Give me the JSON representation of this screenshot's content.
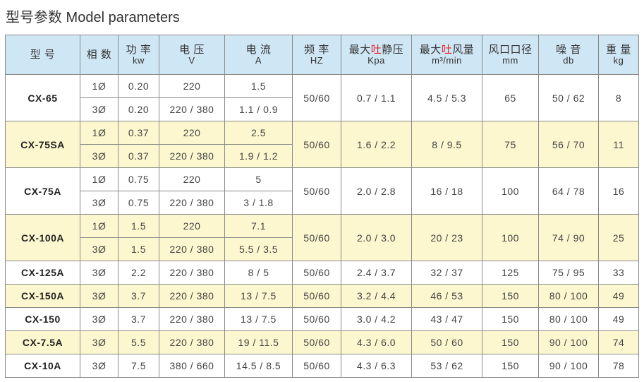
{
  "title": "型号参数 Model parameters",
  "header": [
    {
      "label": "型 号",
      "unit": ""
    },
    {
      "label": "相 数",
      "unit": ""
    },
    {
      "label": "功 率",
      "unit": "kw"
    },
    {
      "label": "电 压",
      "unit": "V"
    },
    {
      "label": "电 流",
      "unit": "A"
    },
    {
      "label": "频 率",
      "unit": "HZ"
    },
    {
      "label_pre": "最大",
      "label_red": "吐",
      "label_post": "静压",
      "unit": "Kpa"
    },
    {
      "label_pre": "最大",
      "label_red": "吐",
      "label_post": "风量",
      "unit": "m³/min"
    },
    {
      "label": "风口口径",
      "unit": "mm"
    },
    {
      "label": "噪 音",
      "unit": "db"
    },
    {
      "label": "重 量",
      "unit": "kg"
    }
  ],
  "colors": {
    "header_bg": "#cfe6f5",
    "highlight_row_bg": "#fdf7cf",
    "accent_red": "#e0262b"
  },
  "models": [
    {
      "model": "CX-65",
      "highlight": false,
      "freq": "50/60",
      "pressure": "0.7 / 1.1",
      "flow": "4.5 / 5.3",
      "outlet": "65",
      "noise": "50 / 62",
      "weight": "8",
      "rows": [
        {
          "phase": "1Ø",
          "power": "0.20",
          "voltage": "220",
          "current": "1.5"
        },
        {
          "phase": "3Ø",
          "power": "0.20",
          "voltage": "220 / 380",
          "current": "1.1 / 0.9"
        }
      ]
    },
    {
      "model": "CX-75SA",
      "highlight": true,
      "freq": "50/60",
      "pressure": "1.6 / 2.2",
      "flow": "8 / 9.5",
      "outlet": "75",
      "noise": "56 / 70",
      "weight": "11",
      "rows": [
        {
          "phase": "1Ø",
          "power": "0.37",
          "voltage": "220",
          "current": "2.5"
        },
        {
          "phase": "3Ø",
          "power": "0.37",
          "voltage": "220 / 380",
          "current": "1.9 / 1.2"
        }
      ]
    },
    {
      "model": "CX-75A",
      "highlight": false,
      "freq": "50/60",
      "pressure": "2.0 / 2.8",
      "flow": "16 / 18",
      "outlet": "100",
      "noise": "64 / 78",
      "weight": "16",
      "rows": [
        {
          "phase": "1Ø",
          "power": "0.75",
          "voltage": "220",
          "current": "5"
        },
        {
          "phase": "3Ø",
          "power": "0.75",
          "voltage": "220 / 380",
          "current": "3 / 1.8"
        }
      ]
    },
    {
      "model": "CX-100A",
      "highlight": true,
      "freq": "50/60",
      "pressure": "2.0 / 3.0",
      "flow": "20 / 23",
      "outlet": "100",
      "noise": "74 / 90",
      "weight": "25",
      "rows": [
        {
          "phase": "1Ø",
          "power": "1.5",
          "voltage": "220",
          "current": "7.1"
        },
        {
          "phase": "3Ø",
          "power": "1.5",
          "voltage": "220 / 380",
          "current": "5.5 / 3.5"
        }
      ]
    },
    {
      "model": "CX-125A",
      "highlight": false,
      "freq": "50/60",
      "pressure": "2.4 / 3.7",
      "flow": "32 / 37",
      "outlet": "125",
      "noise": "75 / 95",
      "weight": "33",
      "rows": [
        {
          "phase": "3Ø",
          "power": "2.2",
          "voltage": "220 / 380",
          "current": "8 / 5"
        }
      ]
    },
    {
      "model": "CX-150A",
      "highlight": true,
      "freq": "50/60",
      "pressure": "3.2 / 4.4",
      "flow": "46 / 53",
      "outlet": "150",
      "noise": "80 / 100",
      "weight": "49",
      "rows": [
        {
          "phase": "3Ø",
          "power": "3.7",
          "voltage": "220 / 380",
          "current": "13 / 7.5"
        }
      ]
    },
    {
      "model": "CX-150",
      "highlight": false,
      "freq": "50/60",
      "pressure": "3.0 / 4.2",
      "flow": "43 / 47",
      "outlet": "150",
      "noise": "80 / 100",
      "weight": "49",
      "rows": [
        {
          "phase": "3Ø",
          "power": "3.7",
          "voltage": "220 / 380",
          "current": "13 / 7.5"
        }
      ]
    },
    {
      "model": "CX-7.5A",
      "highlight": true,
      "freq": "50/60",
      "pressure": "4.3 / 6.0",
      "flow": "50 / 60",
      "outlet": "150",
      "noise": "90 / 100",
      "weight": "74",
      "rows": [
        {
          "phase": "3Ø",
          "power": "5.5",
          "voltage": "220 / 380",
          "current": "19 / 11.5"
        }
      ]
    },
    {
      "model": "CX-10A",
      "highlight": false,
      "freq": "50/60",
      "pressure": "4.3 / 6.3",
      "flow": "53 / 62",
      "outlet": "150",
      "noise": "90 / 100",
      "weight": "78",
      "rows": [
        {
          "phase": "3Ø",
          "power": "7.5",
          "voltage": "380 / 660",
          "current": "14.5 / 8.5"
        }
      ]
    }
  ]
}
